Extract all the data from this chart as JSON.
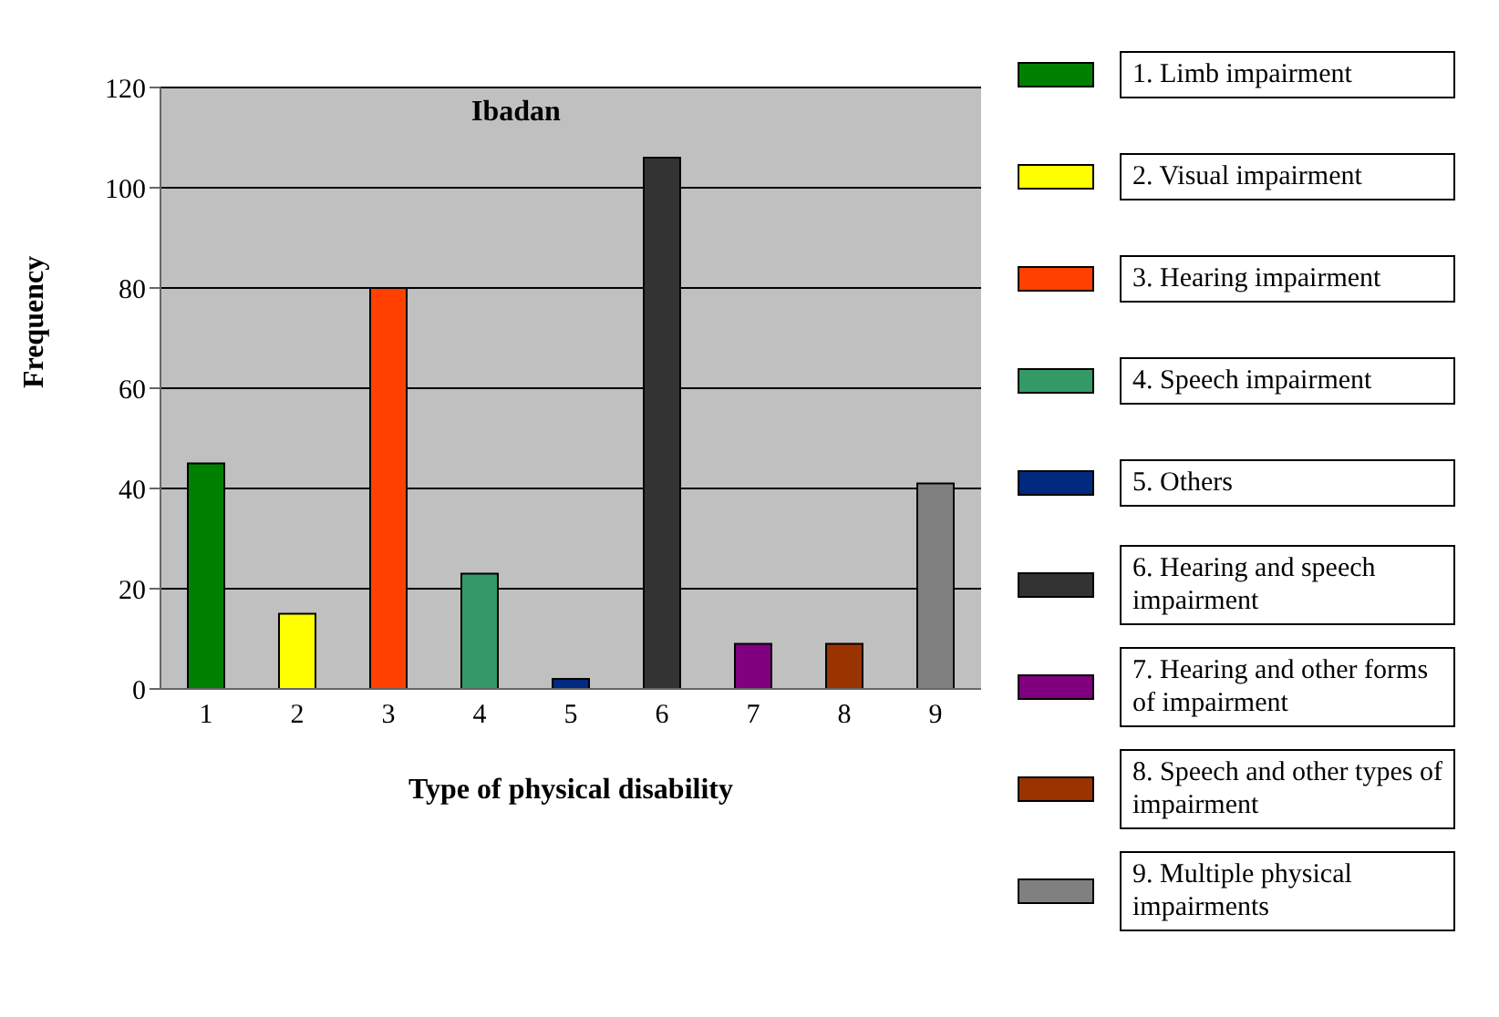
{
  "chart_data": {
    "type": "bar",
    "title": "Ibadan",
    "xlabel": "Type of physical disability",
    "ylabel": "Frequency",
    "categories": [
      "1",
      "2",
      "3",
      "4",
      "5",
      "6",
      "7",
      "8",
      "9"
    ],
    "stacked": true,
    "ylim": [
      0,
      120
    ],
    "yticks": [
      0,
      20,
      40,
      60,
      80,
      100,
      120
    ],
    "grid": "y",
    "legend": "right",
    "series": [
      {
        "name": "1. Limb impairment",
        "color": "#008000",
        "values": [
          45,
          null,
          null,
          null,
          null,
          null,
          null,
          null,
          null
        ]
      },
      {
        "name": "2. Visual impairment",
        "color": "#ffff00",
        "values": [
          null,
          15,
          null,
          null,
          null,
          null,
          null,
          null,
          null
        ]
      },
      {
        "name": "3. Hearing impairment",
        "color": "#ff4000",
        "values": [
          null,
          null,
          80,
          null,
          null,
          null,
          null,
          null,
          null
        ]
      },
      {
        "name": "4. Speech impairment",
        "color": "#339966",
        "values": [
          null,
          null,
          null,
          23,
          null,
          null,
          null,
          null,
          null
        ]
      },
      {
        "name": "5. Others",
        "color": "#002a80",
        "values": [
          null,
          null,
          null,
          null,
          2,
          null,
          null,
          null,
          null
        ]
      },
      {
        "name": "6. Hearing and speech impairment",
        "color": "#333333",
        "values": [
          null,
          null,
          null,
          null,
          null,
          106,
          null,
          null,
          null
        ]
      },
      {
        "name": "7. Hearing and other forms of impairment",
        "color": "#800080",
        "values": [
          null,
          null,
          null,
          null,
          null,
          null,
          9,
          null,
          null
        ]
      },
      {
        "name": "8. Speech and other types of impairment",
        "color": "#993300",
        "values": [
          null,
          null,
          null,
          null,
          null,
          null,
          null,
          9,
          null
        ]
      },
      {
        "name": "9. Multiple physical impairments",
        "color": "#808080",
        "values": [
          null,
          null,
          null,
          null,
          null,
          null,
          null,
          null,
          41
        ]
      }
    ]
  }
}
